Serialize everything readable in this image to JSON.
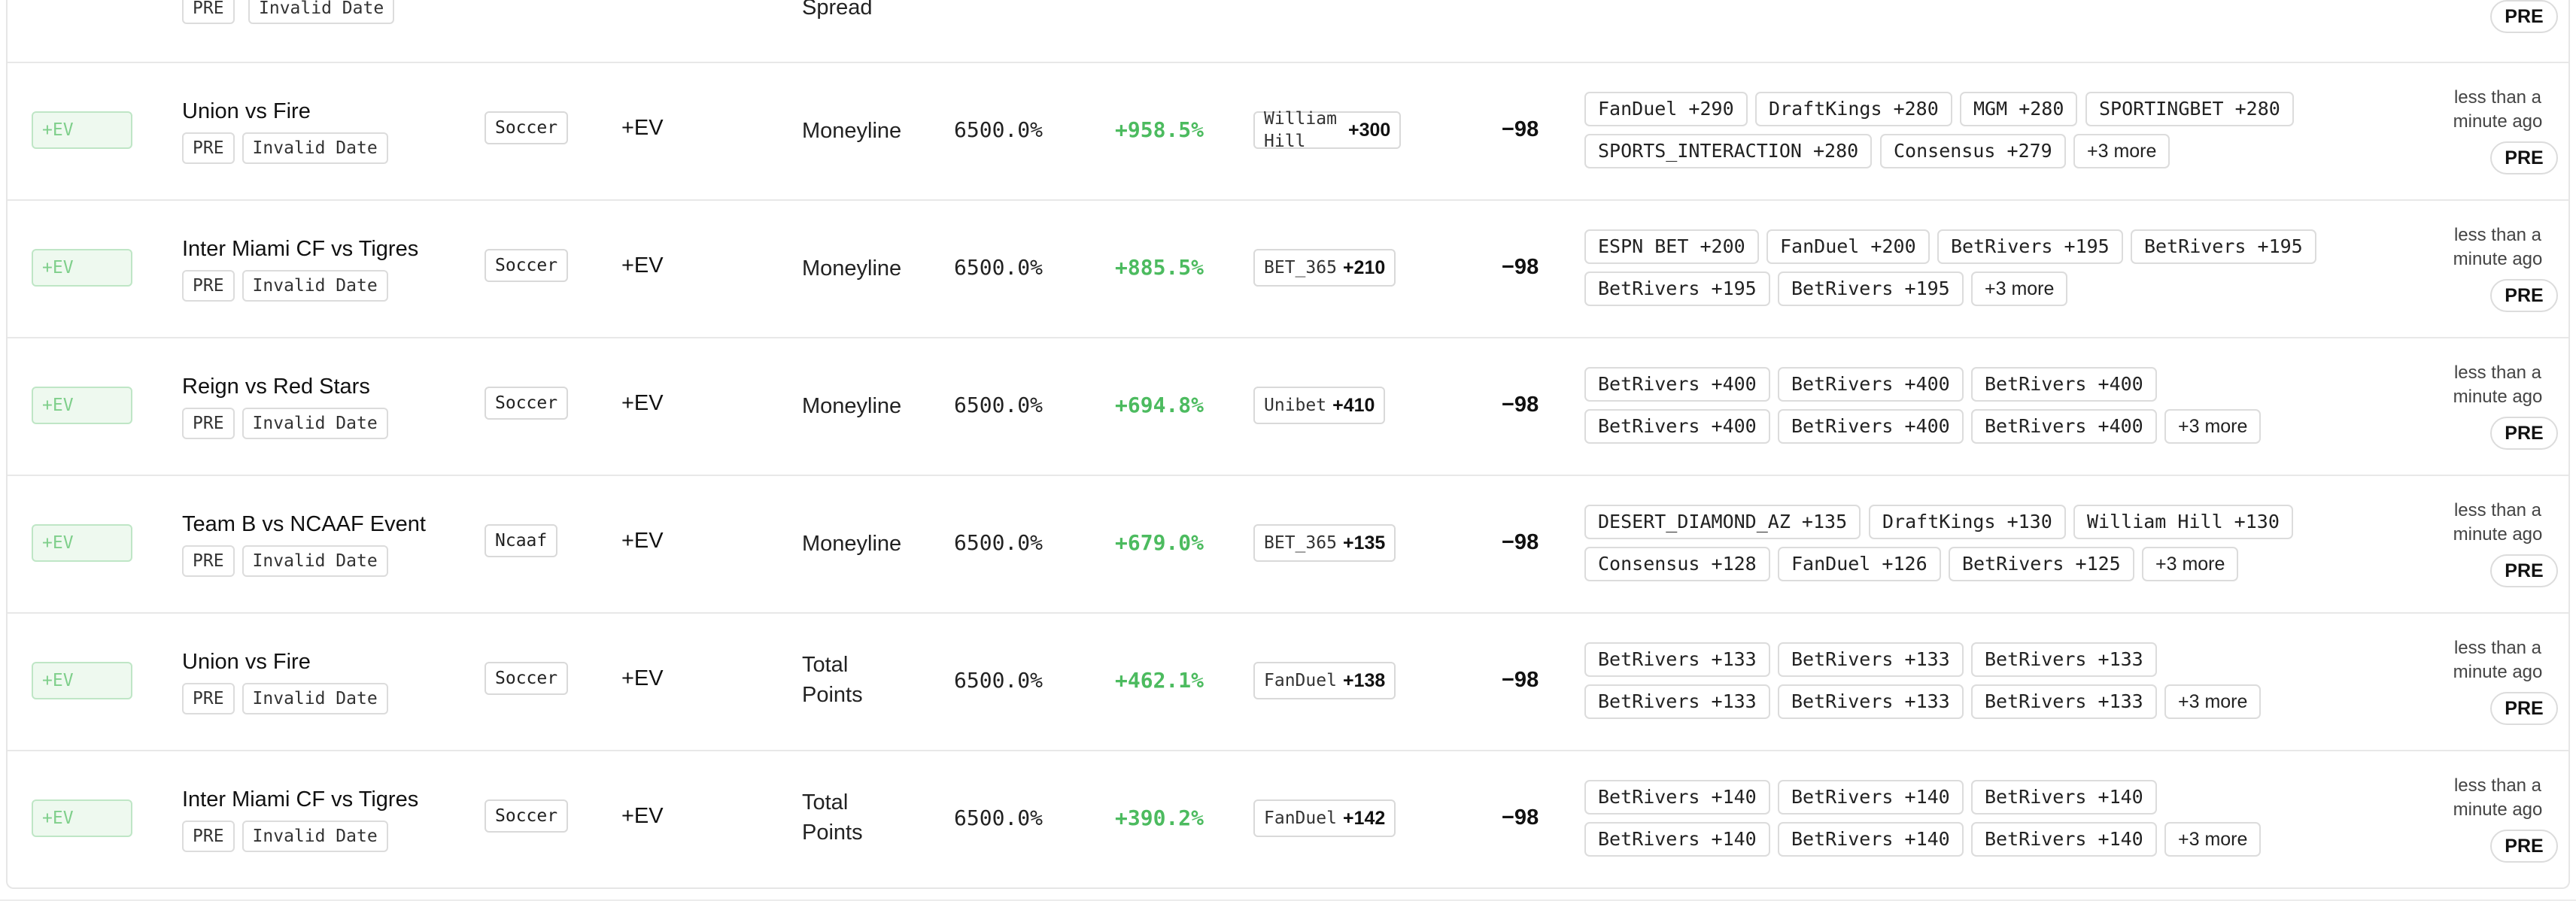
{
  "top_row": {
    "tags": [
      "PRE",
      "Invalid Date"
    ],
    "market": "Spread",
    "status": "PRE"
  },
  "rows": [
    {
      "badge": "+EV",
      "event": "Union vs Fire",
      "tags": [
        "PRE",
        "Invalid Date"
      ],
      "sport": "Soccer",
      "ev_type": "+EV",
      "market_lines": [
        "Moneyline"
      ],
      "probability": "6500.0%",
      "edge": "+958.5%",
      "book": {
        "name": "William Hill",
        "odds": "+300"
      },
      "fair_odds": "−98",
      "odds_chips": [
        "FanDuel +290",
        "DraftKings +280",
        "MGM +280",
        "SPORTINGBET +280",
        "SPORTS_INTERACTION +280",
        "Consensus +279"
      ],
      "more": "+3 more",
      "updated": "less than a minute ago",
      "status": "PRE"
    },
    {
      "badge": "+EV",
      "event": "Inter Miami CF vs Tigres",
      "tags": [
        "PRE",
        "Invalid Date"
      ],
      "sport": "Soccer",
      "ev_type": "+EV",
      "market_lines": [
        "Moneyline"
      ],
      "probability": "6500.0%",
      "edge": "+885.5%",
      "book": {
        "name": "BET_365",
        "odds": "+210"
      },
      "fair_odds": "−98",
      "odds_chips": [
        "ESPN BET +200",
        "FanDuel +200",
        "BetRivers +195",
        "BetRivers +195",
        "BetRivers +195",
        "BetRivers +195"
      ],
      "more": "+3 more",
      "updated": "less than a minute ago",
      "status": "PRE"
    },
    {
      "badge": "+EV",
      "event": "Reign vs Red Stars",
      "tags": [
        "PRE",
        "Invalid Date"
      ],
      "sport": "Soccer",
      "ev_type": "+EV",
      "market_lines": [
        "Moneyline"
      ],
      "probability": "6500.0%",
      "edge": "+694.8%",
      "book": {
        "name": "Unibet",
        "odds": "+410"
      },
      "fair_odds": "−98",
      "odds_chips": [
        "BetRivers +400",
        "BetRivers +400",
        "BetRivers +400",
        "BetRivers +400",
        "BetRivers +400",
        "BetRivers +400"
      ],
      "more": "+3 more",
      "updated": "less than a minute ago",
      "status": "PRE"
    },
    {
      "badge": "+EV",
      "event": "Team B vs NCAAF Event",
      "tags": [
        "PRE",
        "Invalid Date"
      ],
      "sport": "Ncaaf",
      "ev_type": "+EV",
      "market_lines": [
        "Moneyline"
      ],
      "probability": "6500.0%",
      "edge": "+679.0%",
      "book": {
        "name": "BET_365",
        "odds": "+135"
      },
      "fair_odds": "−98",
      "odds_chips": [
        "DESERT_DIAMOND_AZ +135",
        "DraftKings +130",
        "William Hill +130",
        "Consensus +128",
        "FanDuel +126",
        "BetRivers +125"
      ],
      "more": "+3 more",
      "updated": "less than a minute ago",
      "status": "PRE"
    },
    {
      "badge": "+EV",
      "event": "Union vs Fire",
      "tags": [
        "PRE",
        "Invalid Date"
      ],
      "sport": "Soccer",
      "ev_type": "+EV",
      "market_lines": [
        "Total",
        "Points"
      ],
      "probability": "6500.0%",
      "edge": "+462.1%",
      "book": {
        "name": "FanDuel",
        "odds": "+138"
      },
      "fair_odds": "−98",
      "odds_chips": [
        "BetRivers +133",
        "BetRivers +133",
        "BetRivers +133",
        "BetRivers +133",
        "BetRivers +133",
        "BetRivers +133"
      ],
      "more": "+3 more",
      "updated": "less than a minute ago",
      "status": "PRE"
    },
    {
      "badge": "+EV",
      "event": "Inter Miami CF vs Tigres",
      "tags": [
        "PRE",
        "Invalid Date"
      ],
      "sport": "Soccer",
      "ev_type": "+EV",
      "market_lines": [
        "Total",
        "Points"
      ],
      "probability": "6500.0%",
      "edge": "+390.2%",
      "book": {
        "name": "FanDuel",
        "odds": "+142"
      },
      "fair_odds": "−98",
      "odds_chips": [
        "BetRivers +140",
        "BetRivers +140",
        "BetRivers +140",
        "BetRivers +140",
        "BetRivers +140",
        "BetRivers +140"
      ],
      "more": "+3 more",
      "updated": "less than a minute ago",
      "status": "PRE"
    }
  ]
}
